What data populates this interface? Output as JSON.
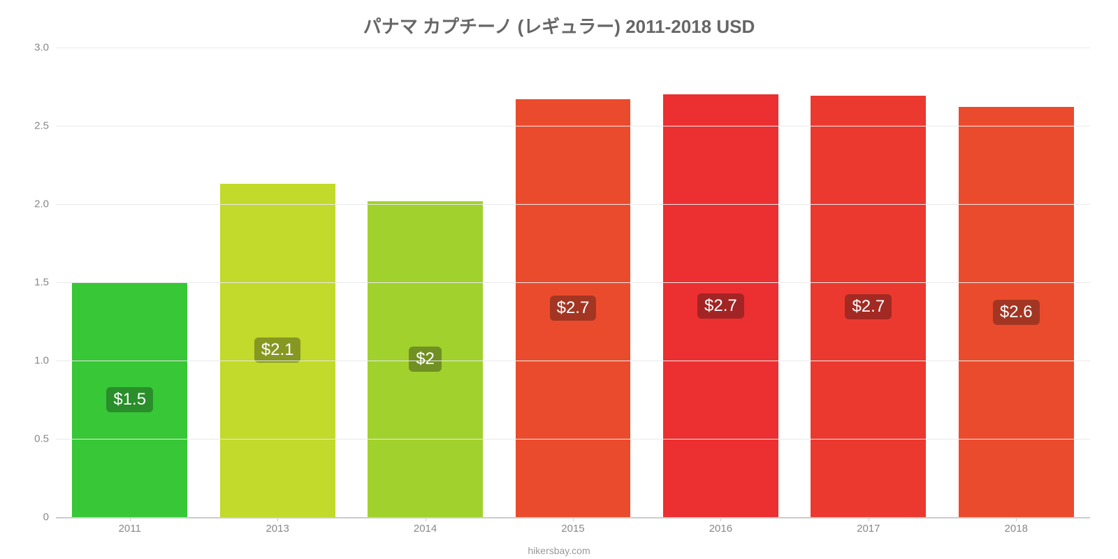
{
  "chart": {
    "type": "bar",
    "title": "パナマ カプチーノ (レギュラー) 2011-2018 USD",
    "title_fontsize": 26,
    "title_color": "#666666",
    "background_color": "#ffffff",
    "grid_color": "#e9e9e9",
    "axis_color": "#cccccc",
    "label_color": "#888888",
    "label_fontsize": 15,
    "ylim": [
      0,
      3.0
    ],
    "ytick_step": 0.5,
    "yticks": [
      "0",
      "0.5",
      "1.0",
      "1.5",
      "2.0",
      "2.5",
      "3.0"
    ],
    "bar_width_pct": 78,
    "value_label_fontsize": 24,
    "value_label_color": "#ffffff",
    "categories": [
      "2011",
      "2013",
      "2014",
      "2015",
      "2016",
      "2017",
      "2018"
    ],
    "values": [
      1.5,
      2.13,
      2.02,
      2.67,
      2.7,
      2.69,
      2.62
    ],
    "value_labels": [
      "$1.5",
      "$2.1",
      "$2",
      "$2.7",
      "$2.7",
      "$2.7",
      "$2.6"
    ],
    "bar_colors": [
      "#37c737",
      "#c1da2b",
      "#a1d12d",
      "#eb4b2d",
      "#ec2f31",
      "#eb3930",
      "#eb4b2d"
    ],
    "badge_colors": [
      "#2a8e2a",
      "#869722",
      "#709023",
      "#a23623",
      "#a22424",
      "#a22a23",
      "#a23623"
    ],
    "attribution": "hikersbay.com",
    "attribution_color": "#999999"
  }
}
